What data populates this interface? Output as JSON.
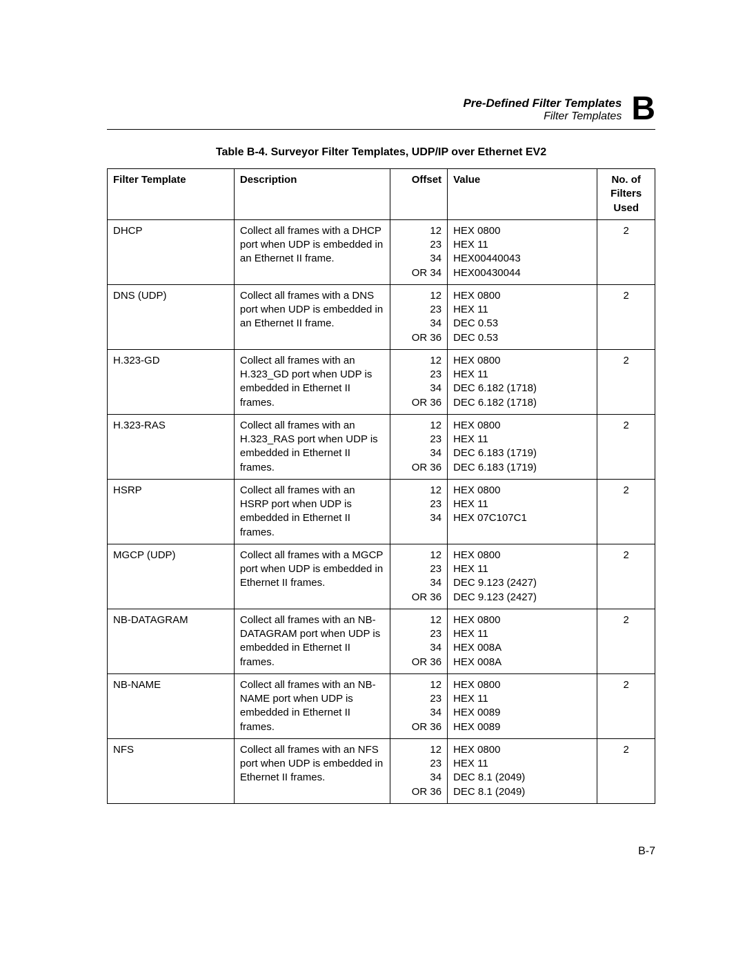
{
  "header": {
    "title": "Pre-Defined Filter Templates",
    "subtitle": "Filter Templates",
    "appendix_letter": "B"
  },
  "caption": "Table B-4. Surveyor Filter Templates, UDP/IP over Ethernet EV2",
  "columns": {
    "template": "Filter Template",
    "description": "Description",
    "offset": "Offset",
    "value": "Value",
    "filters": "No. of\nFilters\nUsed"
  },
  "rows": [
    {
      "template": "DHCP",
      "description": "Collect all frames with a DHCP port when UDP is embedded in an Ethernet II frame.",
      "offset": "12\n23\n34\nOR 34",
      "value": "HEX 0800\nHEX 11\nHEX00440043\nHEX00430044",
      "filters": "2"
    },
    {
      "template": "DNS (UDP)",
      "description": "Collect all frames with a DNS port when UDP is embedded in an Ethernet II frame.",
      "offset": "12\n23\n34\nOR 36",
      "value": "HEX 0800\nHEX 11\nDEC 0.53\nDEC 0.53",
      "filters": "2"
    },
    {
      "template": "H.323-GD",
      "description": "Collect all frames with an H.323_GD port when UDP is embedded in Ethernet II frames.",
      "offset": "12\n23\n34\nOR 36",
      "value": "HEX 0800\nHEX 11\nDEC 6.182 (1718)\nDEC 6.182 (1718)",
      "filters": "2"
    },
    {
      "template": "H.323-RAS",
      "description": "Collect all frames with an H.323_RAS port when UDP is embedded in Ethernet II frames.",
      "offset": "12\n23\n34\nOR 36",
      "value": "HEX 0800\nHEX 11\nDEC 6.183 (1719)\nDEC 6.183 (1719)",
      "filters": "2"
    },
    {
      "template": "HSRP",
      "description": "Collect all frames with an HSRP port when UDP is embedded in Ethernet II frames.",
      "offset": "12\n23\n34",
      "value": "HEX 0800\nHEX 11\nHEX 07C107C1",
      "filters": "2"
    },
    {
      "template": "MGCP (UDP)",
      "description": "Collect all frames with a MGCP port when UDP is embedded in Ethernet II frames.",
      "offset": "12\n23\n34\nOR 36",
      "value": "HEX 0800\nHEX 11\nDEC 9.123 (2427)\nDEC 9.123 (2427)",
      "filters": "2"
    },
    {
      "template": "NB-DATAGRAM",
      "description": "Collect all frames with an NB-DATAGRAM port when UDP is embedded in Ethernet II frames.",
      "offset": "12\n23\n34\nOR 36",
      "value": "HEX 0800\nHEX 11\nHEX 008A\nHEX 008A",
      "filters": "2"
    },
    {
      "template": "NB-NAME",
      "description": "Collect all frames with an NB-NAME port when UDP is embedded in Ethernet II frames.",
      "offset": "12\n23\n34\nOR 36",
      "value": "HEX 0800\nHEX 11\nHEX 0089\nHEX 0089",
      "filters": "2"
    },
    {
      "template": "NFS",
      "description": "Collect all frames with an NFS port when UDP is embedded in Ethernet II frames.",
      "offset": "12\n23\n34\nOR 36",
      "value": "HEX 0800\nHEX 11\nDEC 8.1 (2049)\nDEC 8.1 (2049)",
      "filters": "2"
    }
  ],
  "page_number": "B-7"
}
